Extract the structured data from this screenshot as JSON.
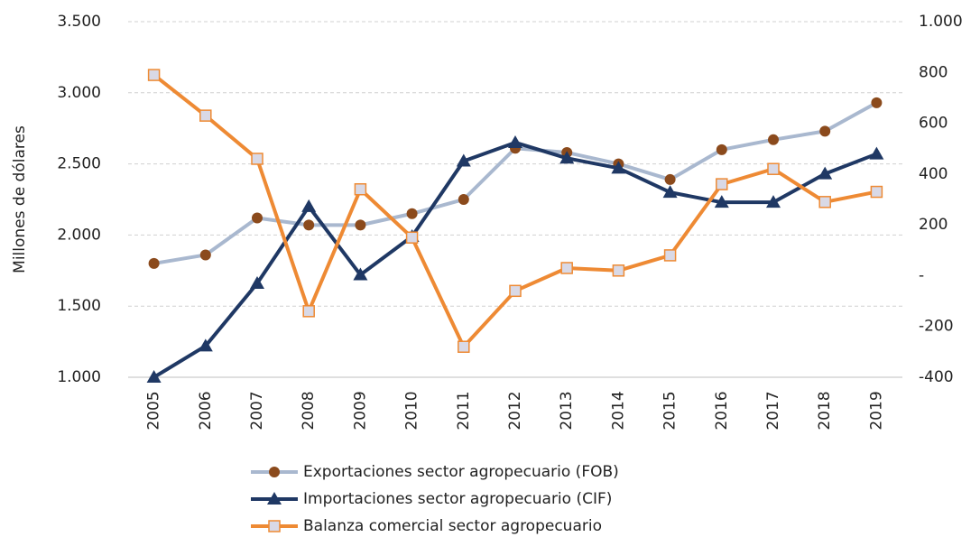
{
  "chart_data": {
    "type": "line",
    "y_label": "Millones de dólares",
    "categories": [
      "2005",
      "2006",
      "2007",
      "2008",
      "2009",
      "2010",
      "2011",
      "2012",
      "2013",
      "2014",
      "2015",
      "2016",
      "2017",
      "2018",
      "2019"
    ],
    "series": [
      {
        "name": "Exportaciones sector agropecuario (FOB)",
        "color": "#a9b8cf",
        "marker_color": "#8b4a1c",
        "marker": "circle",
        "values": [
          1800,
          1860,
          2120,
          2070,
          2070,
          2150,
          2250,
          2610,
          2580,
          2500,
          2390,
          2600,
          2670,
          2730,
          2930
        ]
      },
      {
        "name": "Importaciones sector agropecuario (CIF)",
        "color": "#1f3864",
        "marker_color": "#1f3864",
        "marker": "triangle",
        "values": [
          1000,
          1220,
          1660,
          2200,
          1720,
          1990,
          2520,
          2650,
          2540,
          2470,
          2300,
          2230,
          2230,
          2430,
          2570
        ]
      },
      {
        "name": "Balanza comercial sector agropecuario",
        "color": "#ee8a34",
        "marker_color": "#d9d9e6",
        "marker": "square",
        "axis": "y2",
        "values": [
          790,
          630,
          460,
          -140,
          340,
          150,
          -280,
          -60,
          30,
          20,
          80,
          360,
          420,
          290,
          330
        ]
      }
    ],
    "ylim": [
      1000,
      3500
    ],
    "yticks": [
      {
        "value": 1000,
        "label": "1.000"
      },
      {
        "value": 1500,
        "label": "1.500"
      },
      {
        "value": 2000,
        "label": "2.000"
      },
      {
        "value": 2500,
        "label": "2.500"
      },
      {
        "value": 3000,
        "label": "3.000"
      },
      {
        "value": 3500,
        "label": "3.500"
      }
    ],
    "y2lim": [
      -400,
      1000
    ],
    "y2ticks": [
      -400,
      -200,
      {
        "value": 0,
        "label": "-"
      },
      200,
      400,
      600,
      800,
      {
        "value": 1000,
        "label": "1.000"
      }
    ],
    "grid": true,
    "legend": "bottom"
  }
}
